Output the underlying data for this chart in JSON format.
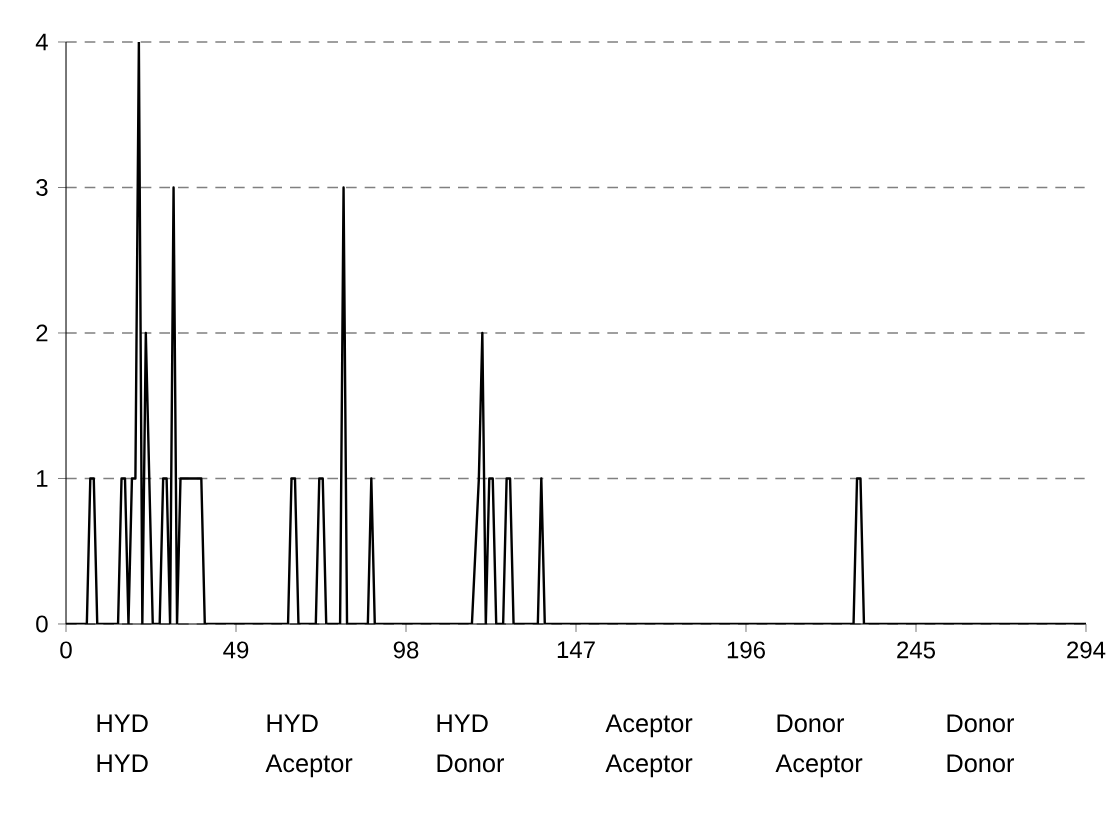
{
  "chart_data": {
    "type": "line",
    "x": [
      0,
      6,
      7,
      8,
      9,
      15,
      16,
      17,
      18,
      19,
      20,
      21,
      22,
      23,
      24,
      25,
      27,
      28,
      29,
      30,
      31,
      32,
      33,
      39,
      40,
      64,
      65,
      66,
      67,
      72,
      73,
      74,
      75,
      79,
      80,
      81,
      87,
      88,
      89,
      117,
      119,
      120,
      121,
      122,
      123,
      124,
      126,
      127,
      128,
      129,
      136,
      137,
      138,
      227,
      228,
      229,
      230,
      294
    ],
    "series": [
      {
        "color": "#000000",
        "values": [
          0,
          0,
          1,
          1,
          0,
          0,
          1,
          1,
          0,
          1,
          1,
          4,
          0,
          2,
          1,
          0,
          0,
          1,
          1,
          0,
          3,
          0,
          1,
          1,
          0,
          0,
          1,
          1,
          0,
          0,
          1,
          1,
          0,
          0,
          3,
          0,
          0,
          1,
          0,
          0,
          1,
          2,
          0,
          1,
          1,
          0,
          0,
          1,
          1,
          0,
          0,
          1,
          0,
          0,
          1,
          1,
          0,
          0
        ]
      }
    ],
    "xlim": [
      0,
      294
    ],
    "xticks": [
      0,
      49,
      98,
      147,
      196,
      245,
      294
    ],
    "ylim": [
      0,
      4
    ],
    "yticks": [
      0,
      1,
      2,
      3,
      4
    ],
    "grid": "y",
    "marker": "none",
    "line_style": "solid",
    "annotations": [
      "HYD",
      "HYD",
      "HYD",
      "Aceptor",
      "Donor",
      "Donor",
      "HYD",
      "Aceptor",
      "Donor",
      "Aceptor",
      "Aceptor",
      "Donor"
    ]
  }
}
